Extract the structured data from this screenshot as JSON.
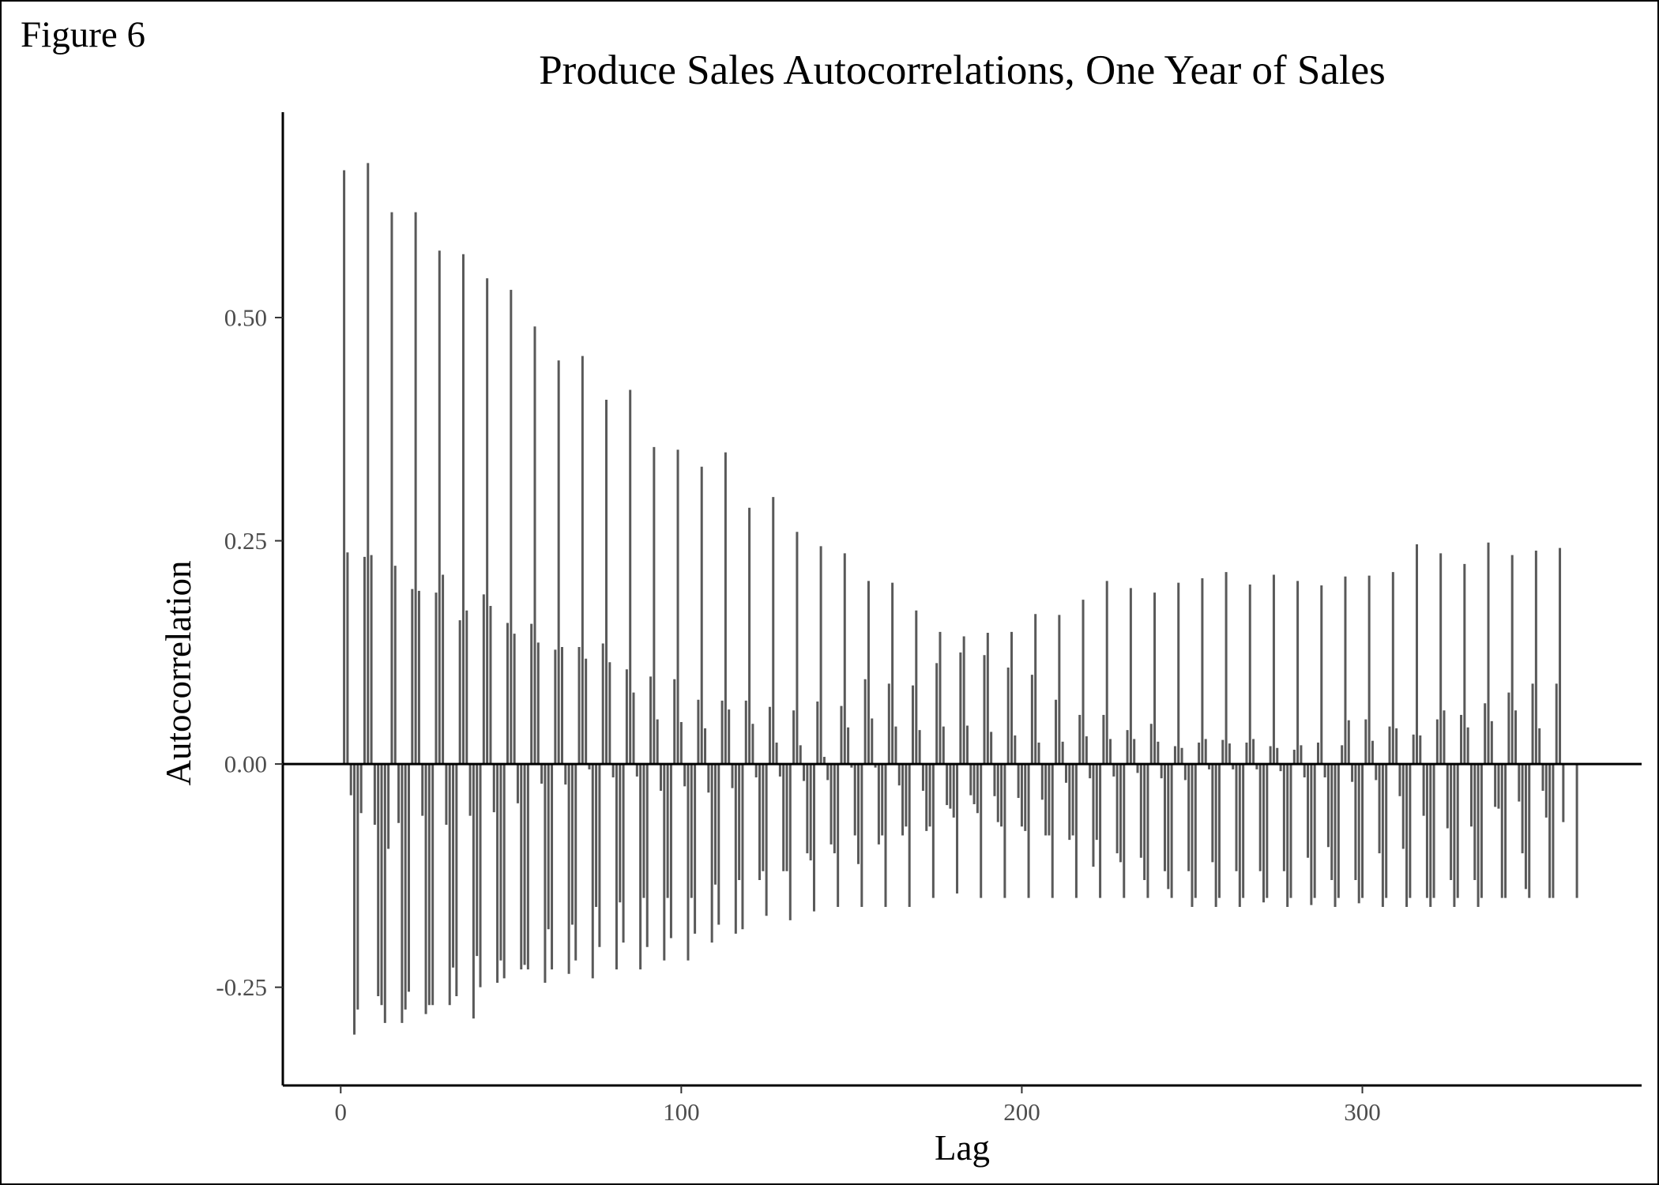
{
  "figure_label": "Figure 6",
  "chart_data": {
    "type": "bar",
    "title": "Produce Sales Autocorrelations, One Year of Sales",
    "xlabel": "Lag",
    "ylabel": "Autocorrelation",
    "xlim": [
      -17,
      382
    ],
    "ylim": [
      -0.36,
      0.73
    ],
    "xticks": [
      0,
      100,
      200,
      300
    ],
    "xtick_labels": [
      "0",
      "100",
      "200",
      "300"
    ],
    "yticks": [
      -0.25,
      0,
      0.25,
      0.5
    ],
    "ytick_labels": [
      "-0.25",
      "0.00",
      "0.25",
      "0.50"
    ],
    "reference_line": 0,
    "grid": false,
    "bar_color": "#595959",
    "x_start": 1,
    "weekly_pattern": {
      "0": [
        0.665,
        0.673,
        0.618,
        0.618,
        0.575,
        0.571,
        0.544,
        0.531,
        0.49,
        0.452,
        0.457,
        0.408,
        0.419,
        0.355,
        0.352,
        0.333,
        0.349,
        0.287,
        0.299,
        0.26,
        0.244,
        0.236,
        0.205,
        0.203,
        0.172,
        0.148,
        0.143,
        0.147,
        0.148,
        0.168,
        0.167,
        0.184,
        0.205,
        0.197,
        0.192,
        0.203,
        0.208,
        0.215,
        0.201,
        0.212,
        0.205,
        0.2,
        0.21,
        0.211,
        0.215,
        0.246,
        0.236,
        0.224,
        0.248,
        0.234,
        0.239,
        0.242
      ],
      "1": [
        0.237,
        0.234,
        0.222,
        0.194,
        0.212,
        0.172,
        0.177,
        0.146,
        0.136,
        0.131,
        0.118,
        0.114,
        0.08,
        0.05,
        0.047,
        0.04,
        0.061,
        0.045,
        0.024,
        0.021,
        0.008,
        0.041,
        0.051,
        0.042,
        0.038,
        0.042,
        0.043,
        0.036,
        0.032,
        0.024,
        0.025,
        0.031,
        0.028,
        0.028,
        0.025,
        0.018,
        0.028,
        0.023,
        0.028,
        0.018,
        0.021,
        -0.015,
        0.049,
        0.026,
        0.04,
        0.032,
        0.06,
        0.041,
        0.048,
        0.06,
        0.04,
        -0.065
      ],
      "2": [
        -0.035,
        -0.068,
        -0.066,
        -0.058,
        -0.068,
        -0.058,
        -0.054,
        -0.044,
        -0.022,
        -0.023,
        -0.006,
        -0.015,
        -0.014,
        -0.03,
        -0.025,
        -0.032,
        -0.027,
        -0.015,
        -0.014,
        -0.019,
        -0.018,
        -0.004,
        -0.004,
        -0.024,
        -0.03,
        -0.046,
        -0.035,
        -0.036,
        -0.038,
        -0.04,
        -0.021,
        -0.016,
        -0.014,
        -0.01,
        -0.016,
        -0.018,
        -0.006,
        -0.006,
        -0.006,
        -0.008,
        -0.015,
        -0.093,
        -0.02,
        -0.018,
        -0.036,
        -0.058,
        -0.072,
        -0.07,
        -0.048,
        -0.042,
        -0.03
      ],
      "3": [
        -0.303,
        -0.26,
        -0.29,
        -0.28,
        -0.27,
        -0.285,
        -0.245,
        -0.23,
        -0.245,
        -0.235,
        -0.24,
        -0.23,
        -0.23,
        -0.22,
        -0.22,
        -0.2,
        -0.19,
        -0.13,
        -0.12,
        -0.1,
        -0.09,
        -0.08,
        -0.09,
        -0.08,
        -0.075,
        -0.05,
        -0.045,
        -0.065,
        -0.07,
        -0.08,
        -0.085,
        -0.115,
        -0.1,
        -0.105,
        -0.12,
        -0.12,
        -0.11,
        -0.12,
        -0.12,
        -0.12,
        -0.105,
        -0.13,
        -0.13,
        -0.1,
        -0.095,
        -0.15,
        -0.13,
        -0.13,
        -0.05,
        -0.1,
        -0.06
      ],
      "4": [
        -0.275,
        -0.27,
        -0.275,
        -0.27,
        -0.228,
        -0.215,
        -0.22,
        -0.225,
        -0.185,
        -0.18,
        -0.16,
        -0.155,
        -0.15,
        -0.15,
        -0.15,
        -0.135,
        -0.13,
        -0.12,
        -0.12,
        -0.108,
        -0.1,
        -0.112,
        -0.08,
        -0.07,
        -0.07,
        -0.06,
        -0.055,
        -0.07,
        -0.075,
        -0.08,
        -0.08,
        -0.085,
        -0.11,
        -0.13,
        -0.14,
        -0.16,
        -0.16,
        -0.16,
        -0.155,
        -0.16,
        -0.158,
        -0.16,
        -0.156,
        -0.16,
        -0.16,
        -0.16,
        -0.16,
        -0.16,
        -0.15,
        -0.14,
        -0.15
      ],
      "5": [
        -0.055,
        -0.29,
        -0.255,
        -0.27,
        -0.26,
        -0.25,
        -0.24,
        -0.23,
        -0.23,
        -0.22,
        -0.205,
        -0.2,
        -0.205,
        -0.195,
        -0.19,
        -0.18,
        -0.185,
        -0.17,
        -0.175,
        -0.165,
        -0.16,
        -0.16,
        -0.16,
        -0.16,
        -0.15,
        -0.145,
        -0.15,
        -0.15,
        -0.15,
        -0.15,
        -0.15,
        -0.15,
        -0.15,
        -0.15,
        -0.15,
        -0.15,
        -0.15,
        -0.15,
        -0.15,
        -0.15,
        -0.15,
        -0.15,
        -0.15,
        -0.15,
        -0.15,
        -0.15,
        -0.15,
        -0.15,
        -0.15,
        -0.15,
        -0.15,
        -0.15
      ],
      "6": [
        0.232,
        -0.095,
        0.196,
        0.192,
        0.161,
        0.19,
        0.158,
        0.157,
        0.128,
        0.131,
        0.135,
        0.106,
        0.098,
        0.095,
        0.072,
        0.071,
        0.071,
        0.064,
        0.06,
        0.07,
        0.065,
        0.095,
        0.09,
        0.088,
        0.113,
        0.125,
        0.122,
        0.108,
        0.1,
        0.072,
        0.055,
        0.055,
        0.038,
        0.045,
        0.02,
        0.024,
        0.027,
        0.024,
        0.02,
        0.016,
        0.024,
        0.021,
        0.05,
        0.042,
        0.033,
        0.05,
        0.055,
        0.068,
        0.08,
        0.09,
        0.09
      ]
    }
  }
}
